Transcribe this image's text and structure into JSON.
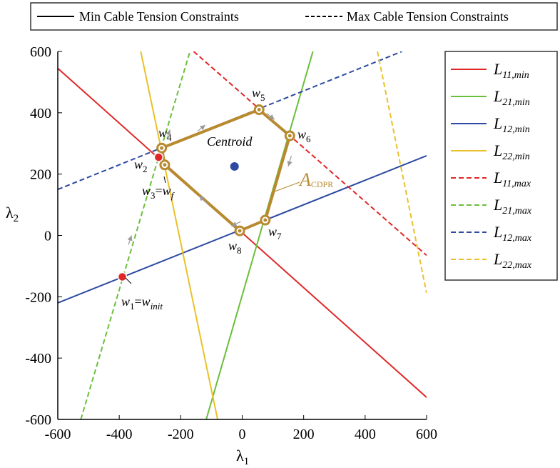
{
  "chart_data": {
    "type": "line",
    "xlabel": "λ",
    "xlabel_sub": "1",
    "ylabel": "λ",
    "ylabel_sub": "2",
    "xlim": [
      -600,
      600
    ],
    "ylim": [
      -600,
      600
    ],
    "xticks": [
      -600,
      -400,
      -200,
      0,
      200,
      400,
      600
    ],
    "yticks": [
      -600,
      -400,
      -200,
      0,
      200,
      400,
      600
    ],
    "top_legend": {
      "solid_label": "Min Cable Tension Constraints",
      "dashed_label": "Max Cable Tension Constraints"
    },
    "series": [
      {
        "name": "L",
        "sub": "11,min",
        "color": "#e02727",
        "dash": false,
        "points": [
          [
            -600,
            545
          ],
          [
            600,
            -528
          ]
        ]
      },
      {
        "name": "L",
        "sub": "21,min",
        "color": "#6abf3a",
        "dash": false,
        "points": [
          [
            -117,
            -600
          ],
          [
            233,
            610
          ]
        ]
      },
      {
        "name": "L",
        "sub": "12,min",
        "color": "#2d4aa0",
        "dash": false,
        "points": [
          [
            -600,
            -220
          ],
          [
            600,
            260
          ]
        ]
      },
      {
        "name": "L",
        "sub": "22,min",
        "color": "#eac12a",
        "dash": false,
        "points": [
          [
            -330,
            600
          ],
          [
            -80,
            -600
          ]
        ]
      },
      {
        "name": "L",
        "sub": "11,max",
        "color": "#e02727",
        "dash": true,
        "points": [
          [
            -158,
            600
          ],
          [
            600,
            -65
          ]
        ]
      },
      {
        "name": "L",
        "sub": "21,max",
        "color": "#6abf3a",
        "dash": true,
        "points": [
          [
            -525,
            -600
          ],
          [
            -170,
            600
          ]
        ]
      },
      {
        "name": "L",
        "sub": "12,max",
        "color": "#2d4aa0",
        "dash": true,
        "points": [
          [
            -600,
            150
          ],
          [
            520,
            600
          ]
        ]
      },
      {
        "name": "L",
        "sub": "22,max",
        "color": "#eac12a",
        "dash": true,
        "points": [
          [
            440,
            600
          ],
          [
            600,
            -188
          ]
        ]
      }
    ],
    "polygon": {
      "color": "#b88a30",
      "label_script": "A",
      "label_sub": "CDPR",
      "vertices": [
        {
          "id": "w4",
          "x": -262,
          "y": 285
        },
        {
          "id": "w5",
          "x": 55,
          "y": 410
        },
        {
          "id": "w6",
          "x": 155,
          "y": 325
        },
        {
          "id": "w7",
          "x": 75,
          "y": 50
        },
        {
          "id": "w8",
          "x": -8,
          "y": 15
        },
        {
          "id": "w3",
          "x": -252,
          "y": 230
        }
      ]
    },
    "points": [
      {
        "name": "w2",
        "x": -272,
        "y": 255,
        "color": "#e02727"
      },
      {
        "name": "w1",
        "x": -390,
        "y": -135,
        "color": "#e02727"
      },
      {
        "name": "Centroid",
        "x": -25,
        "y": 225,
        "color": "#2d4aa0"
      }
    ],
    "annotations": {
      "w1": {
        "main": "w",
        "sub": "1",
        "eq": "=",
        "rhs": "w",
        "rhs_sub": "init"
      },
      "w2": {
        "main": "w",
        "sub": "2"
      },
      "w3": {
        "main": "w",
        "sub": "3",
        "eq": "=",
        "rhs": "w",
        "rhs_sub": "f"
      },
      "w4": {
        "main": "w",
        "sub": "4"
      },
      "w5": {
        "main": "w",
        "sub": "5"
      },
      "w6": {
        "main": "w",
        "sub": "6"
      },
      "w7": {
        "main": "w",
        "sub": "7"
      },
      "w8": {
        "main": "w",
        "sub": "8"
      },
      "centroid": "Centroid"
    }
  }
}
